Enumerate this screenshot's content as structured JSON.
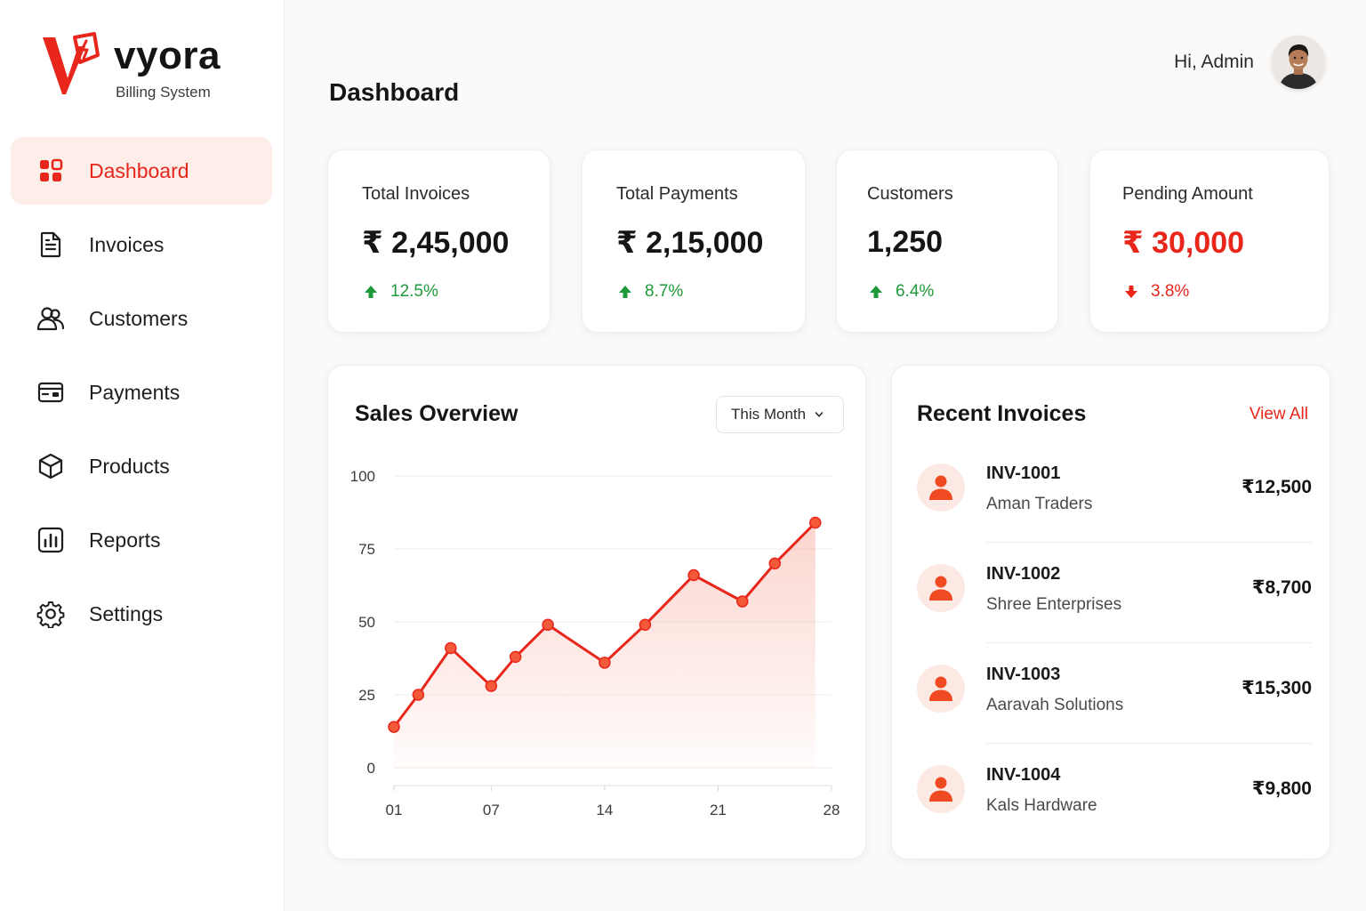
{
  "brand": {
    "name": "vyora",
    "tagline": "Billing System"
  },
  "sidebar": {
    "items": [
      {
        "label": "Dashboard",
        "icon": "dashboard-icon",
        "active": true
      },
      {
        "label": "Invoices",
        "icon": "invoice-icon",
        "active": false
      },
      {
        "label": "Customers",
        "icon": "customers-icon",
        "active": false
      },
      {
        "label": "Payments",
        "icon": "payments-icon",
        "active": false
      },
      {
        "label": "Products",
        "icon": "products-icon",
        "active": false
      },
      {
        "label": "Reports",
        "icon": "reports-icon",
        "active": false
      },
      {
        "label": "Settings",
        "icon": "settings-icon",
        "active": false
      }
    ]
  },
  "header": {
    "title": "Dashboard",
    "greeting": "Hi, Admin"
  },
  "stats": [
    {
      "label": "Total Invoices",
      "value": "₹ 2,45,000",
      "change": "12.5%",
      "trend": "up"
    },
    {
      "label": "Total Payments",
      "value": "₹ 2,15,000",
      "change": "8.7%",
      "trend": "up"
    },
    {
      "label": "Customers",
      "value": "1,250",
      "change": "6.4%",
      "trend": "up"
    },
    {
      "label": "Pending Amount",
      "value": "₹ 30,000",
      "change": "3.8%",
      "trend": "down"
    }
  ],
  "sales": {
    "title": "Sales Overview",
    "period": "This Month"
  },
  "chart_data": {
    "type": "line",
    "title": "Sales Overview",
    "xlabel": "",
    "ylabel": "",
    "x_ticks": [
      "01",
      "07",
      "14",
      "21",
      "28"
    ],
    "y_ticks": [
      "0",
      "25",
      "50",
      "75",
      "100"
    ],
    "xlim": [
      1,
      28
    ],
    "ylim": [
      0,
      100
    ],
    "grid": true,
    "color": "#e8261b",
    "series": [
      {
        "x": [
          1,
          2.5,
          4.5,
          7,
          8.5,
          10.5,
          14,
          16.5,
          19.5,
          22.5,
          24.5,
          27
        ],
        "values": [
          14,
          25,
          41,
          28,
          38,
          49,
          36,
          49,
          66,
          57,
          70,
          84
        ]
      }
    ]
  },
  "invoices": {
    "title": "Recent Invoices",
    "view_all": "View All",
    "items": [
      {
        "id": "INV-1001",
        "name": "Aman Traders",
        "amount": "₹12,500"
      },
      {
        "id": "INV-1002",
        "name": "Shree Enterprises",
        "amount": "₹8,700"
      },
      {
        "id": "INV-1003",
        "name": "Aaravah Solutions",
        "amount": "₹15,300"
      },
      {
        "id": "INV-1004",
        "name": "Kals Hardware",
        "amount": "₹9,800"
      }
    ]
  }
}
